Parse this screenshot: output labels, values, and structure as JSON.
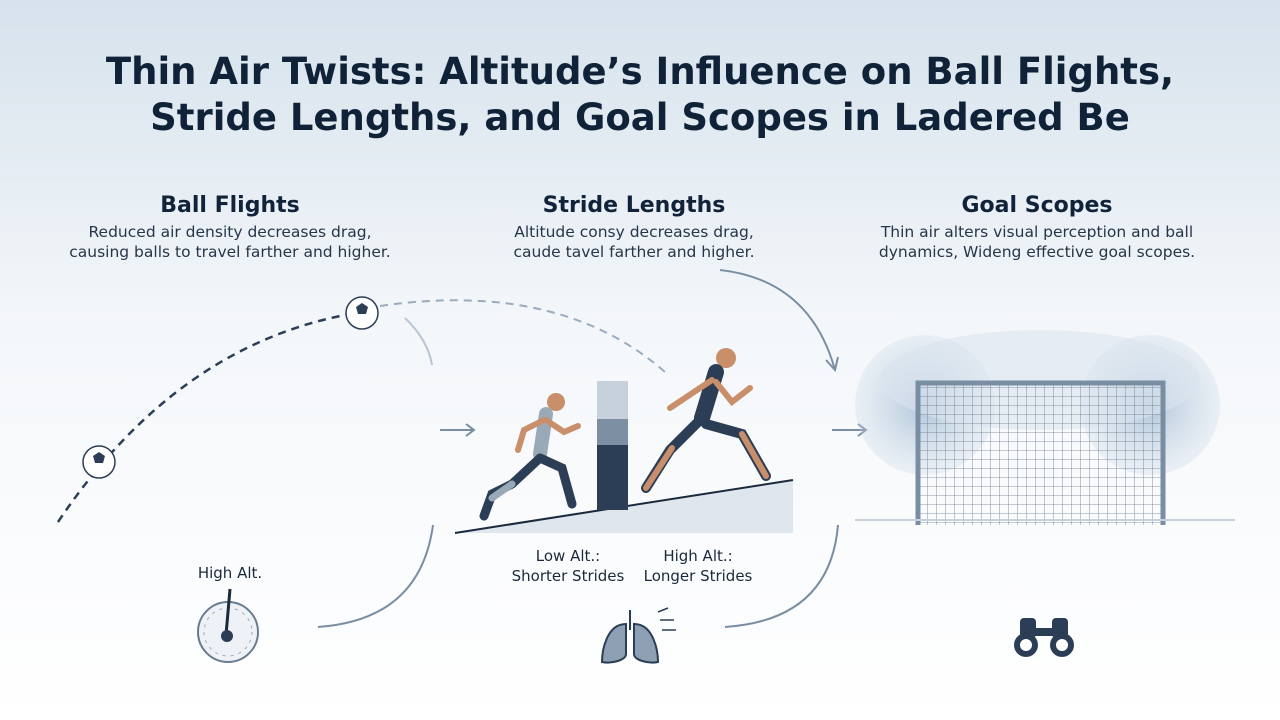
{
  "title": [
    "Thin Air Twists: Altitude’s Influence on Ball Flights,",
    "Stride Lengths, and Goal Scopes in Ladered Be"
  ],
  "sections": [
    {
      "heading": "Ball Flights",
      "text": [
        "Reduced air density decreases drag,",
        "causing balls to travel farther and higher."
      ]
    },
    {
      "heading": "Stride Lengths",
      "text": [
        "Altitude consy decreases drag,",
        "caude tavel farther and higher."
      ]
    },
    {
      "heading": "Goal Scopes",
      "text": [
        "Thin air alters visual perception and ball",
        "dynamics, Wideng effective goal scopes."
      ]
    }
  ],
  "gauge_label": "High Alt.",
  "strides": [
    {
      "label": "Low Alt.:",
      "caption": "Shorter Strides"
    },
    {
      "label": "High Alt.:",
      "caption": "Longer Strides"
    }
  ]
}
